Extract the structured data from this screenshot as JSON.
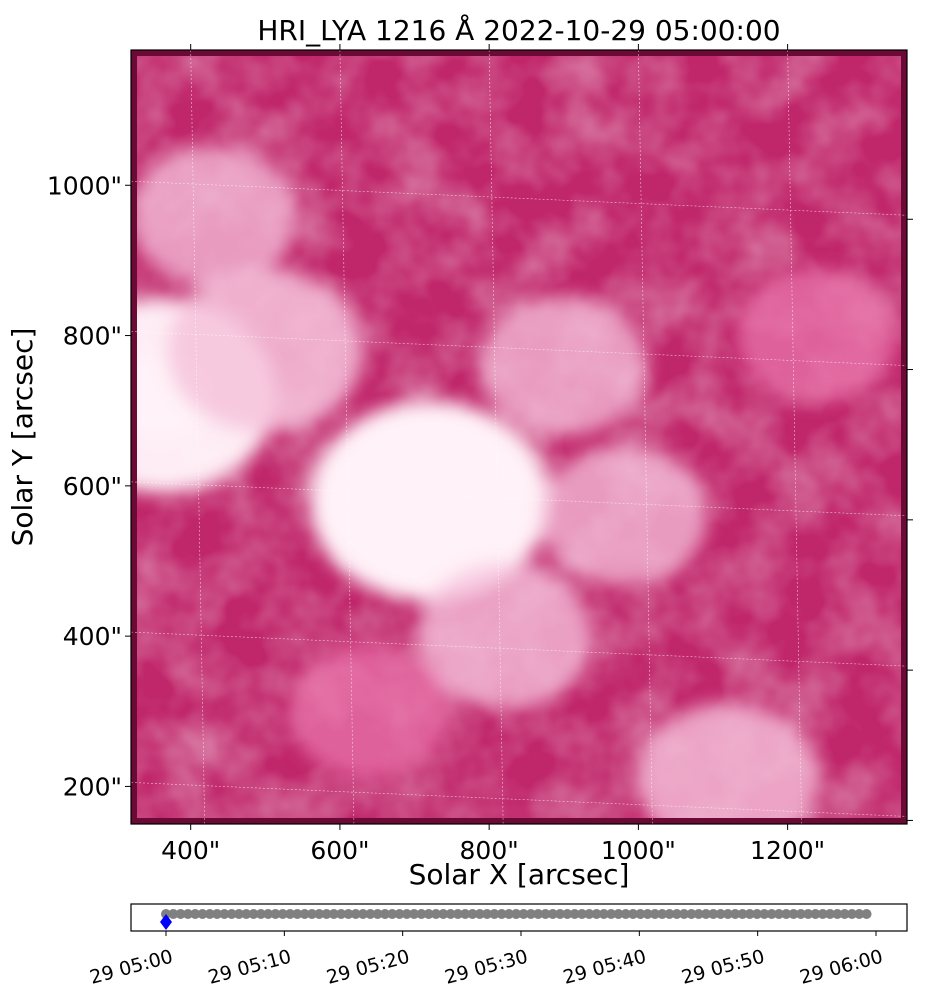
{
  "chart_data": [
    {
      "type": "heatmap",
      "title": "HRI_LYA 1216 Å 2022-10-29 05:00:00",
      "xlabel": "Solar X [arcsec]",
      "ylabel": "Solar Y [arcsec]",
      "xlim": [
        320,
        1360
      ],
      "ylim": [
        150,
        1180
      ],
      "x_ticks": [
        400,
        600,
        800,
        1000,
        1200
      ],
      "x_tick_labels": [
        "400\"",
        "600\"",
        "800\"",
        "1000\"",
        "1200\""
      ],
      "y_ticks": [
        200,
        400,
        600,
        800,
        1000
      ],
      "y_tick_labels": [
        "200\"",
        "400\"",
        "600\"",
        "800\"",
        "1000\""
      ],
      "colormap": [
        "#6b0a35",
        "#b01c5e",
        "#d43c80",
        "#ea78ae",
        "#f6c3dc",
        "#fff2f8"
      ],
      "grid": true,
      "bright_regions": [
        {
          "x": 720,
          "y": 580,
          "intensity": 1.0
        },
        {
          "x": 360,
          "y": 720,
          "intensity": 0.95
        },
        {
          "x": 500,
          "y": 780,
          "intensity": 0.7
        },
        {
          "x": 820,
          "y": 400,
          "intensity": 0.55
        },
        {
          "x": 1120,
          "y": 210,
          "intensity": 0.6
        },
        {
          "x": 980,
          "y": 560,
          "intensity": 0.5
        },
        {
          "x": 900,
          "y": 760,
          "intensity": 0.5
        },
        {
          "x": 430,
          "y": 960,
          "intensity": 0.5
        },
        {
          "x": 1240,
          "y": 800,
          "intensity": 0.45
        },
        {
          "x": 640,
          "y": 300,
          "intensity": 0.45
        }
      ]
    },
    {
      "type": "scatter",
      "x": [
        "05:00",
        "05:00:37",
        "05:01:14",
        "05:01:51",
        "05:02:28",
        "05:03:05",
        "05:03:42",
        "05:04:19",
        "05:04:56",
        "05:05:33",
        "05:06:10",
        "05:06:47",
        "05:07:24",
        "05:08:01",
        "05:08:38",
        "05:09:15",
        "05:09:52",
        "05:10:29",
        "05:11:06",
        "05:11:43",
        "05:12:20",
        "05:12:57",
        "05:13:34",
        "05:14:11",
        "05:14:48",
        "05:15:25",
        "05:16:02",
        "05:16:39",
        "05:17:16",
        "05:17:53",
        "05:18:30",
        "05:19:07",
        "05:19:44",
        "05:20:21",
        "05:20:58",
        "05:21:35",
        "05:22:12",
        "05:22:49",
        "05:23:26",
        "05:24:03",
        "05:24:40",
        "05:25:17",
        "05:25:54",
        "05:26:31",
        "05:27:08",
        "05:27:45",
        "05:28:22",
        "05:28:59",
        "05:29:36",
        "05:30:13",
        "05:30:50",
        "05:31:27",
        "05:32:04",
        "05:32:41",
        "05:33:18",
        "05:33:55",
        "05:34:32",
        "05:35:09",
        "05:35:46",
        "05:36:23",
        "05:37:00",
        "05:37:37",
        "05:38:14",
        "05:38:51",
        "05:39:28",
        "05:40:05",
        "05:40:42",
        "05:41:19",
        "05:41:56",
        "05:42:33",
        "05:43:10",
        "05:43:47",
        "05:44:24",
        "05:45:01",
        "05:45:38",
        "05:46:15",
        "05:46:52",
        "05:47:29",
        "05:48:06",
        "05:48:43",
        "05:49:20",
        "05:49:57",
        "05:50:34",
        "05:51:11",
        "05:51:48",
        "05:52:25",
        "05:53:02",
        "05:53:39",
        "05:54:16",
        "05:54:53",
        "05:55:30",
        "05:56:07",
        "05:56:44",
        "05:57:21",
        "05:57:58",
        "05:58:35",
        "05:59:12"
      ],
      "current": "05:00",
      "x_tick_labels": [
        "29 05:00",
        "29 05:10",
        "29 05:20",
        "29 05:30",
        "29 05:40",
        "29 05:50",
        "29 06:00"
      ],
      "colors": {
        "frame": "#808080",
        "current": "#0000ff"
      }
    }
  ]
}
